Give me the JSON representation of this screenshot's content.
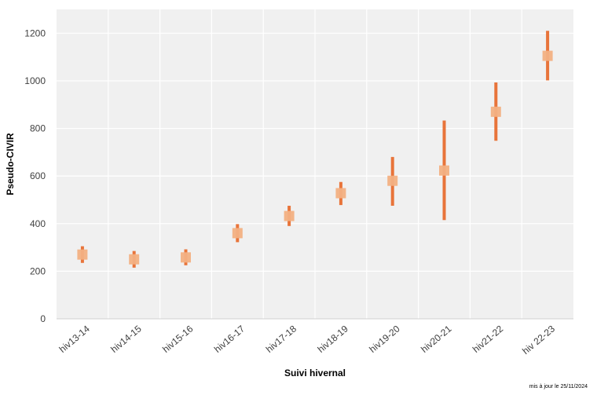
{
  "chart_data": {
    "type": "scatter",
    "subtype": "point-with-confidence-interval",
    "categories": [
      "hiv13-14",
      "hiv14-15",
      "hiv15-16",
      "hiv16-17",
      "hiv17-18",
      "hiv18-19",
      "hiv19-20",
      "hiv20-21",
      "hiv21-22",
      "hiv 22-23"
    ],
    "series": [
      {
        "estimate": [
          270,
          250,
          258,
          360,
          432,
          528,
          580,
          623,
          870,
          1105
        ],
        "lower": [
          235,
          215,
          225,
          322,
          390,
          478,
          475,
          415,
          748,
          1002
        ],
        "upper": [
          305,
          285,
          292,
          398,
          475,
          575,
          680,
          833,
          993,
          1210
        ]
      }
    ],
    "xlabel": "Suivi hivernal",
    "ylabel": "Pseudo-CIVIR",
    "ylim": [
      0,
      1300
    ],
    "yticks": [
      0,
      200,
      400,
      600,
      800,
      1000,
      1200
    ],
    "grid": true,
    "legend": "none",
    "colors": {
      "interval": "#e8743a",
      "estimate": "#f4b183",
      "plot_background": "#f0f0f0",
      "gridline": "#ffffff"
    }
  },
  "footnote": "mis à jour le 25/11/2024"
}
